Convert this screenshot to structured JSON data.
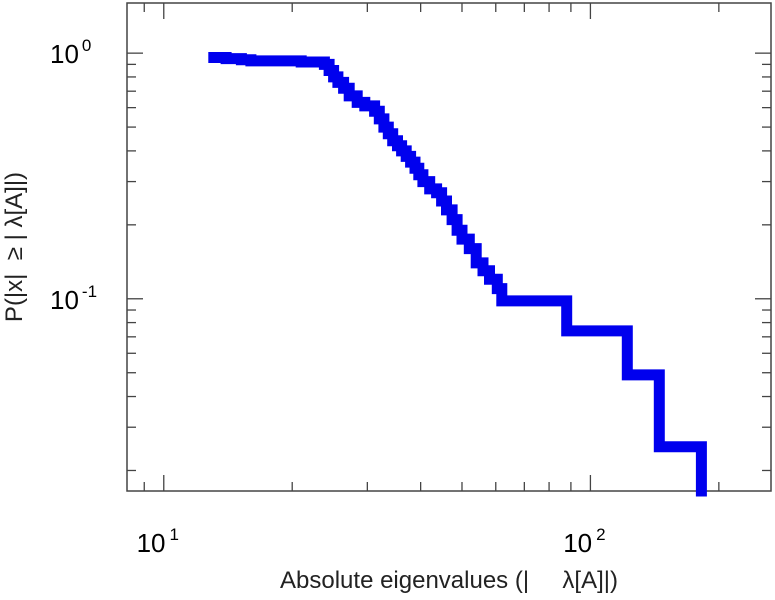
{
  "chart_data": {
    "type": "line",
    "subtype": "step-ccdf",
    "xscale": "log",
    "yscale": "log",
    "xlim": [
      8.2,
      265
    ],
    "ylim": [
      0.0165,
      1.6
    ],
    "xlabel": "Absolute eigenvalues (|     λ[A]|)",
    "ylabel": "P(|x|  ≥ | λ[A]|)",
    "x_tick_labels": [
      {
        "value": 10,
        "base": "10",
        "exp": "1"
      },
      {
        "value": 100,
        "base": "10",
        "exp": "2"
      }
    ],
    "y_tick_labels": [
      {
        "value": 1,
        "base": "10",
        "exp": "0"
      },
      {
        "value": 0.1,
        "base": "10",
        "exp": "-1"
      }
    ],
    "grid": false,
    "legend": "none",
    "line_color": "#0000ee",
    "series": [
      {
        "x": [
          13.1,
          14.0,
          14.5,
          15.2,
          16.0,
          17.5,
          19.0,
          21.0,
          23.8,
          24.4,
          25.0,
          25.6,
          26.4,
          27.2,
          28.4,
          29.6,
          31.2,
          32.0,
          32.8,
          33.6,
          34.4,
          35.3,
          36.1,
          37.0,
          37.9,
          38.8,
          39.6,
          40.5,
          42.0,
          43.6,
          44.8,
          46.0,
          47.4,
          48.7,
          50.0,
          52.0,
          54.0,
          56.0,
          58.0,
          60.5,
          62.0,
          70.0,
          80.0,
          88.0,
          100.0,
          110.0,
          122.0,
          135.0,
          145.0,
          160.0,
          175.0,
          182.0
        ],
        "y": [
          0.96,
          0.95,
          0.95,
          0.94,
          0.93,
          0.93,
          0.93,
          0.92,
          0.9,
          0.85,
          0.8,
          0.76,
          0.72,
          0.67,
          0.63,
          0.61,
          0.58,
          0.54,
          0.5,
          0.47,
          0.44,
          0.42,
          0.4,
          0.38,
          0.36,
          0.34,
          0.32,
          0.3,
          0.28,
          0.27,
          0.25,
          0.23,
          0.21,
          0.19,
          0.175,
          0.16,
          0.14,
          0.13,
          0.12,
          0.11,
          0.098,
          0.098,
          0.098,
          0.074,
          0.074,
          0.074,
          0.049,
          0.049,
          0.025,
          0.025,
          0.025,
          0.0165
        ]
      }
    ]
  }
}
